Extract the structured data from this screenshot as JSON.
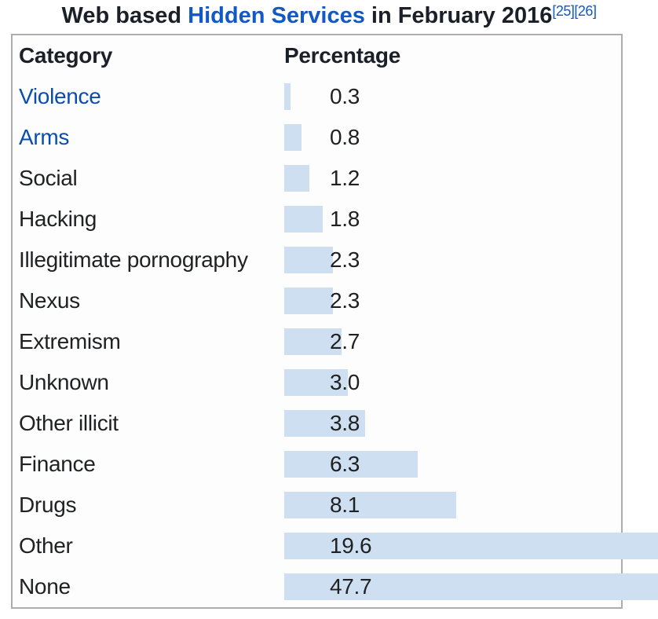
{
  "title": {
    "prefix": "Web based ",
    "link_text": "Hidden Services",
    "suffix": " in February 2016",
    "refs": [
      "[25]",
      "[26]"
    ]
  },
  "table": {
    "headers": {
      "category": "Category",
      "percentage": "Percentage"
    },
    "rows": [
      {
        "label": "Violence",
        "value": 0.3,
        "display": "0.3",
        "is_link": true
      },
      {
        "label": "Arms",
        "value": 0.8,
        "display": "0.8",
        "is_link": true
      },
      {
        "label": "Social",
        "value": 1.2,
        "display": "1.2",
        "is_link": false
      },
      {
        "label": "Hacking",
        "value": 1.8,
        "display": "1.8",
        "is_link": false
      },
      {
        "label": "Illegitimate pornography",
        "value": 2.3,
        "display": "2.3",
        "is_link": false
      },
      {
        "label": "Nexus",
        "value": 2.3,
        "display": "2.3",
        "is_link": false
      },
      {
        "label": "Extremism",
        "value": 2.7,
        "display": "2.7",
        "is_link": false
      },
      {
        "label": "Unknown",
        "value": 3.0,
        "display": "3.0",
        "is_link": false
      },
      {
        "label": "Other illicit",
        "value": 3.8,
        "display": "3.8",
        "is_link": false
      },
      {
        "label": "Finance",
        "value": 6.3,
        "display": "6.3",
        "is_link": false
      },
      {
        "label": "Drugs",
        "value": 8.1,
        "display": "8.1",
        "is_link": false
      },
      {
        "label": "Other",
        "value": 19.6,
        "display": "19.6",
        "is_link": false
      },
      {
        "label": "None",
        "value": 47.7,
        "display": "47.7",
        "is_link": false
      }
    ]
  },
  "chart_data": {
    "type": "bar",
    "orientation": "horizontal",
    "title": "Web based Hidden Services in February 2016",
    "reference_labels": [
      "[25]",
      "[26]"
    ],
    "categories": [
      "Violence",
      "Arms",
      "Social",
      "Hacking",
      "Illegitimate pornography",
      "Nexus",
      "Extremism",
      "Unknown",
      "Other illicit",
      "Finance",
      "Drugs",
      "Other",
      "None"
    ],
    "values": [
      0.3,
      0.8,
      1.2,
      1.8,
      2.3,
      2.3,
      2.7,
      3.0,
      3.8,
      6.3,
      8.1,
      19.6,
      47.7
    ],
    "xlabel": "Percentage",
    "ylabel": "Category",
    "unit": "%",
    "value_labels_shown": true,
    "grid": false,
    "legend": false,
    "linked_categories": [
      "Violence",
      "Arms"
    ]
  },
  "colors": {
    "title_text": "#1b2028",
    "title_link": "#1259c4",
    "text": "#202122",
    "link": "#0b4dad",
    "bar": "#cfdff2",
    "border": "#adadad",
    "table_bg": "#fdfdfd"
  }
}
